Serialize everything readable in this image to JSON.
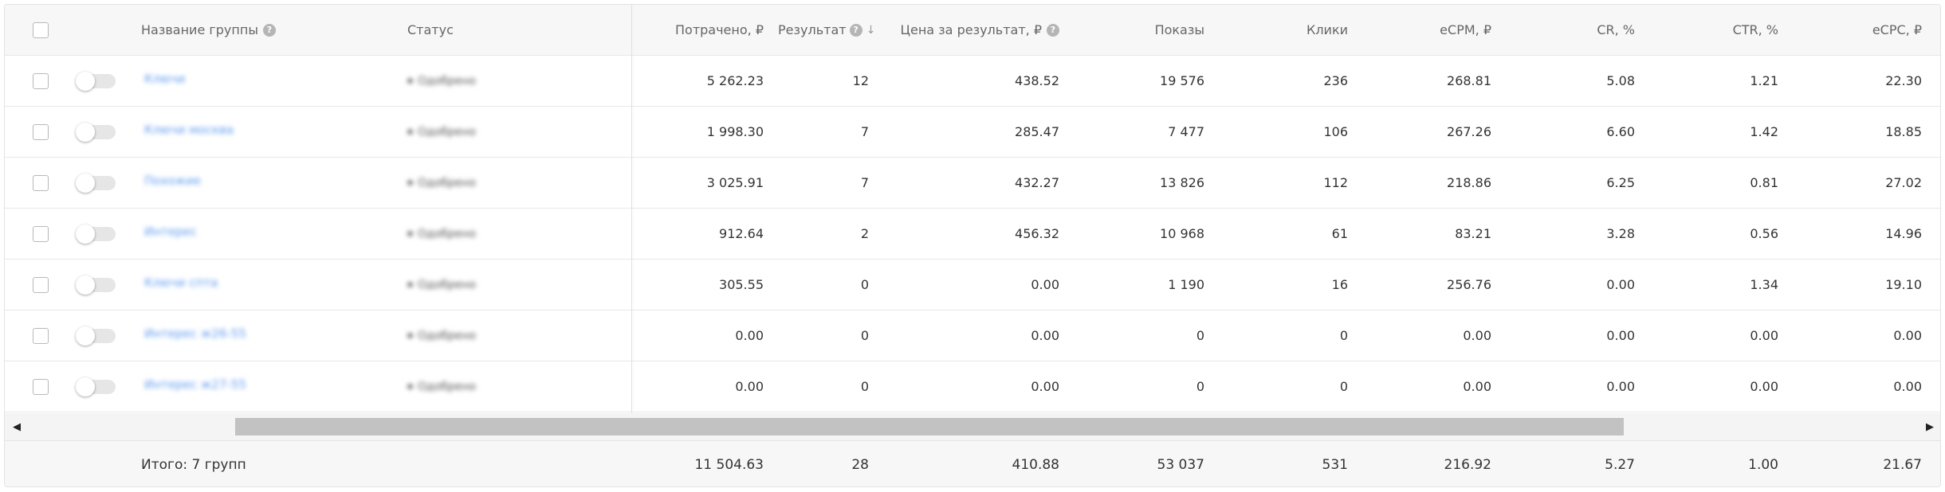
{
  "header": {
    "name": "Название группы",
    "status": "Статус",
    "spent": "Потрачено, ₽",
    "result": "Результат",
    "cost_per_result": "Цена за результат, ₽",
    "impressions": "Показы",
    "clicks": "Клики",
    "ecpm": "eCPM, ₽",
    "cr": "CR, %",
    "ctr": "CTR, %",
    "ecpc": "eCPC, ₽"
  },
  "icons": {
    "help": "help-icon",
    "sort": "sort-down-arrow-icon",
    "toggle": "toggle-switch-off",
    "scroll_left": "arrow-left-icon",
    "scroll_right": "arrow-right-icon"
  },
  "glyphs": {
    "help": "?",
    "sort": "↓",
    "scroll_left": "◀",
    "scroll_right": "▶"
  },
  "rows": [
    {
      "name": "Ключи",
      "status": "Одобрено",
      "spent": "5 262.23",
      "result": "12",
      "cost_per_result": "438.52",
      "impressions": "19 576",
      "clicks": "236",
      "ecpm": "268.81",
      "cr": "5.08",
      "ctr": "1.21",
      "ecpc": "22.30"
    },
    {
      "name": "Ключи москва",
      "status": "Одобрено",
      "spent": "1 998.30",
      "result": "7",
      "cost_per_result": "285.47",
      "impressions": "7 477",
      "clicks": "106",
      "ecpm": "267.26",
      "cr": "6.60",
      "ctr": "1.42",
      "ecpc": "18.85"
    },
    {
      "name": "Похожие",
      "status": "Одобрено",
      "spent": "3 025.91",
      "result": "7",
      "cost_per_result": "432.27",
      "impressions": "13 826",
      "clicks": "112",
      "ecpm": "218.86",
      "cr": "6.25",
      "ctr": "0.81",
      "ecpc": "27.02"
    },
    {
      "name": "Интерес",
      "status": "Одобрено",
      "spent": "912.64",
      "result": "2",
      "cost_per_result": "456.32",
      "impressions": "10 968",
      "clicks": "61",
      "ecpm": "83.21",
      "cr": "3.28",
      "ctr": "0.56",
      "ecpc": "14.96"
    },
    {
      "name": "Ключи спта",
      "status": "Одобрено",
      "spent": "305.55",
      "result": "0",
      "cost_per_result": "0.00",
      "impressions": "1 190",
      "clicks": "16",
      "ecpm": "256.76",
      "cr": "0.00",
      "ctr": "1.34",
      "ecpc": "19.10"
    },
    {
      "name": "Интерес ж26-55",
      "status": "Одобрено",
      "spent": "0.00",
      "result": "0",
      "cost_per_result": "0.00",
      "impressions": "0",
      "clicks": "0",
      "ecpm": "0.00",
      "cr": "0.00",
      "ctr": "0.00",
      "ecpc": "0.00"
    },
    {
      "name": "Интерес ж27-55",
      "status": "Одобрено",
      "spent": "0.00",
      "result": "0",
      "cost_per_result": "0.00",
      "impressions": "0",
      "clicks": "0",
      "ecpm": "0.00",
      "cr": "0.00",
      "ctr": "0.00",
      "ecpc": "0.00"
    }
  ],
  "footer": {
    "total_label": "Итого: 7 групп",
    "spent": "11 504.63",
    "result": "28",
    "cost_per_result": "410.88",
    "impressions": "53 037",
    "clicks": "531",
    "ecpm": "216.92",
    "cr": "5.27",
    "ctr": "1.00",
    "ecpc": "21.67"
  }
}
